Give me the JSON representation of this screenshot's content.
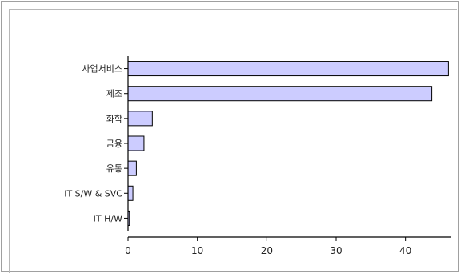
{
  "chart_data": {
    "type": "bar",
    "orientation": "horizontal",
    "categories": [
      "사업서비스",
      "제조",
      "화학",
      "금융",
      "유통",
      "IT S/W & SVC",
      "IT H/W"
    ],
    "values": [
      46.2,
      43.8,
      3.5,
      2.3,
      1.2,
      0.7,
      0.2
    ],
    "xlim": [
      0,
      46.5
    ],
    "xticks": [
      0,
      10,
      20,
      30,
      40
    ],
    "title": "",
    "xlabel": "",
    "ylabel": "",
    "grid": false,
    "bar_color": "#ccccff",
    "bar_edge_color": "#000000"
  }
}
